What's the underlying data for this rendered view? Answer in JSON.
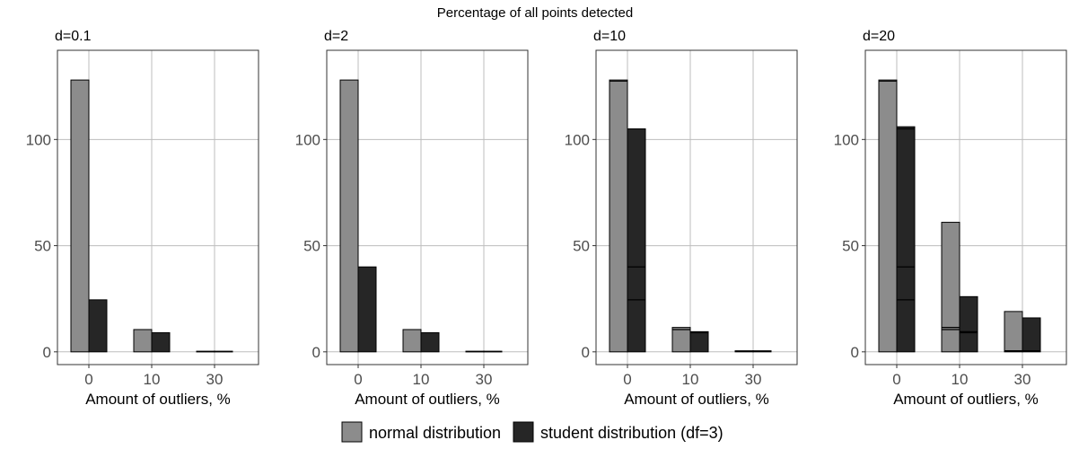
{
  "chart_data": {
    "type": "bar",
    "title": "Percentage of all points detected",
    "xlabel": "Amount of outliers, %",
    "ylabel": "",
    "categories": [
      "0",
      "10",
      "30"
    ],
    "ylim": [
      -6,
      142
    ],
    "yticks": [
      0,
      50,
      100
    ],
    "grid": true,
    "legend_position": "bottom",
    "legend": [
      {
        "name": "normal distribution",
        "color": "#8c8c8c"
      },
      {
        "name": "student distribution (df=3)",
        "color": "#262626"
      }
    ],
    "panels": [
      {
        "label": "d=0.1",
        "series": [
          {
            "name": "normal distribution",
            "values": [
              128,
              10.5,
              0.3
            ]
          },
          {
            "name": "student distribution (df=3)",
            "values": [
              24.5,
              9,
              0.3
            ]
          }
        ],
        "internal_lines": [
          [
            [],
            []
          ],
          [
            [],
            []
          ],
          [
            [],
            []
          ]
        ]
      },
      {
        "label": "d=2",
        "series": [
          {
            "name": "normal distribution",
            "values": [
              128,
              10.5,
              0.3
            ]
          },
          {
            "name": "student distribution (df=3)",
            "values": [
              40,
              9,
              0.3
            ]
          }
        ],
        "internal_lines": [
          [
            [],
            []
          ],
          [
            [],
            []
          ],
          [
            [],
            []
          ]
        ]
      },
      {
        "label": "d=10",
        "series": [
          {
            "name": "normal distribution",
            "values": [
              128,
              11.5,
              0.5
            ]
          },
          {
            "name": "student distribution (df=3)",
            "values": [
              105,
              9.5,
              0.5
            ]
          }
        ],
        "internal_lines": [
          [
            [
              127.5
            ],
            [
              40,
              24.5
            ]
          ],
          [
            [
              10.5
            ],
            [
              9
            ]
          ],
          [
            [
              0.3
            ],
            [
              0.3
            ]
          ]
        ]
      },
      {
        "label": "d=20",
        "series": [
          {
            "name": "normal distribution",
            "values": [
              128,
              61,
              19
            ]
          },
          {
            "name": "student distribution (df=3)",
            "values": [
              106,
              26,
              16
            ]
          }
        ],
        "internal_lines": [
          [
            [
              127.5
            ],
            [
              105,
              40,
              24.5
            ]
          ],
          [
            [
              11.5,
              10.5
            ],
            [
              9.5,
              9
            ]
          ],
          [
            [
              0.5,
              0.3
            ],
            [
              0.5,
              0.3
            ]
          ]
        ]
      }
    ]
  }
}
